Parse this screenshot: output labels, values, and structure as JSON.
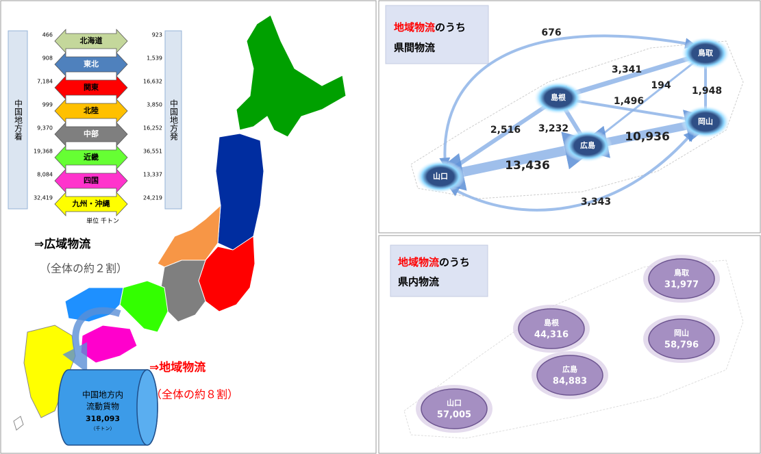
{
  "left_panel": {
    "arrival_label": "中国地方着",
    "departure_label": "中国地方発",
    "regions": [
      {
        "name": "北海道",
        "arrival": "466",
        "departure": "923",
        "color": "#c4d79b"
      },
      {
        "name": "東北",
        "arrival": "908",
        "departure": "1,539",
        "color": "#4f81bd"
      },
      {
        "name": "関東",
        "arrival": "7,184",
        "departure": "16,632",
        "color": "#ff0000"
      },
      {
        "name": "北陸",
        "arrival": "999",
        "departure": "3,850",
        "color": "#ffc000"
      },
      {
        "name": "中部",
        "arrival": "9,370",
        "departure": "16,252",
        "color": "#7f7f7f"
      },
      {
        "name": "近畿",
        "arrival": "19,368",
        "departure": "36,551",
        "color": "#66ff33"
      },
      {
        "name": "四国",
        "arrival": "8,084",
        "departure": "13,337",
        "color": "#ff33cc"
      },
      {
        "name": "九州・沖縄",
        "arrival": "32,419",
        "departure": "24,219",
        "color": "#ffff00"
      }
    ],
    "unit_note": "単位 千トン",
    "wide_area_label": "⇒広域物流",
    "wide_area_note": "（全体の約２割）",
    "regional_label": "⇒地域物流",
    "regional_note": "（全体の約８割）",
    "cylinder": {
      "line1": "中国地方内",
      "line2": "流動貨物",
      "value": "318,093",
      "unit": "（千トン）"
    }
  },
  "inter_prefecture": {
    "title_highlight": "地域物流",
    "title_rest": "のうち",
    "subtitle": "県間物流",
    "nodes": [
      "鳥取",
      "島根",
      "岡山",
      "広島",
      "山口"
    ],
    "flows": [
      "676",
      "3,341",
      "194",
      "1,948",
      "1,496",
      "2,516",
      "3,232",
      "10,936",
      "13,436",
      "3,343"
    ]
  },
  "intra_prefecture": {
    "title_highlight": "地域物流",
    "title_rest": "のうち",
    "subtitle": "県内物流",
    "nodes": [
      {
        "name": "鳥取",
        "value": "31,977"
      },
      {
        "name": "島根",
        "value": "44,316"
      },
      {
        "name": "岡山",
        "value": "58,796"
      },
      {
        "name": "広島",
        "value": "84,883"
      },
      {
        "name": "山口",
        "value": "57,005"
      }
    ]
  }
}
